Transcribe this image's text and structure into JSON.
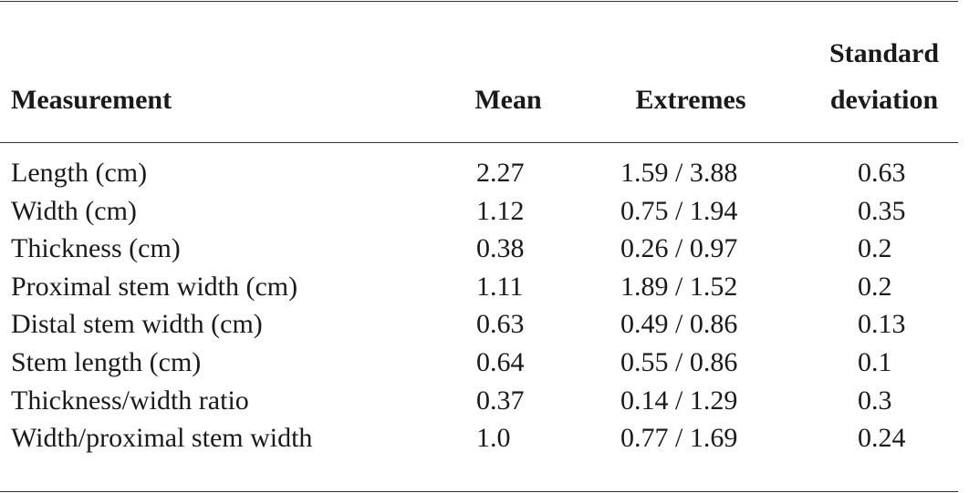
{
  "table": {
    "header": [
      "Measurement",
      "Mean",
      "Extremes",
      "Standard deviation"
    ],
    "rows": [
      [
        "Length (cm)",
        "2.27",
        "1.59 / 3.88",
        "0.63"
      ],
      [
        "Width (cm)",
        "1.12",
        "0.75 / 1.94",
        "0.35"
      ],
      [
        "Thickness (cm)",
        "0.38",
        "0.26 / 0.97",
        "0.2"
      ],
      [
        "Proximal stem width (cm)",
        "1.11",
        "1.89 / 1.52",
        "0.2"
      ],
      [
        "Distal stem width (cm)",
        "0.63",
        "0.49 / 0.86",
        "0.13"
      ],
      [
        "Stem length (cm)",
        "0.64",
        "0.55 / 0.86",
        "0.1"
      ],
      [
        "Thickness/width ratio",
        "0.37",
        "0.14 / 1.29",
        "0.3"
      ],
      [
        "Width/proximal stem width",
        "1.0",
        "0.77 / 1.69",
        "0.24"
      ]
    ]
  }
}
